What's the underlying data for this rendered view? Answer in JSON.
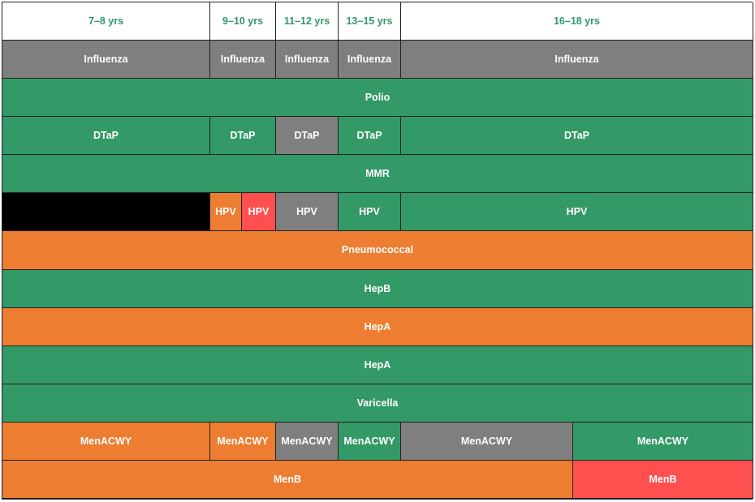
{
  "colors": {
    "green": "#339966",
    "gray": "#7f7f7f",
    "orange": "#ed7d31",
    "red": "#ff5050",
    "black": "#000000",
    "header_text": "#339966"
  },
  "headers": [
    "7–8 yrs",
    "9–10 yrs",
    "11–12 yrs",
    "13–15 yrs",
    "16–18 yrs"
  ],
  "rows": {
    "influenza": [
      "Influenza",
      "Influenza",
      "Influenza",
      "Influenza",
      "Influenza"
    ],
    "polio": "Polio",
    "dtap": [
      "DTaP",
      "DTaP",
      "DTaP",
      "DTaP",
      "DTaP"
    ],
    "mmr": "MMR",
    "hpv": [
      "HPV",
      "HPV",
      "HPV",
      "HPV",
      "HPV"
    ],
    "pneumococcal": "Pneumococcal",
    "hepb": "HepB",
    "hepa_1": "HepA",
    "hepa_2": "HepA",
    "varicella": "Varicella",
    "menacwy": [
      "MenACWY",
      "MenACWY",
      "MenACWY",
      "MenACWY",
      "MenACWY",
      "MenACWY"
    ],
    "menb": [
      "MenB",
      "MenB"
    ]
  }
}
